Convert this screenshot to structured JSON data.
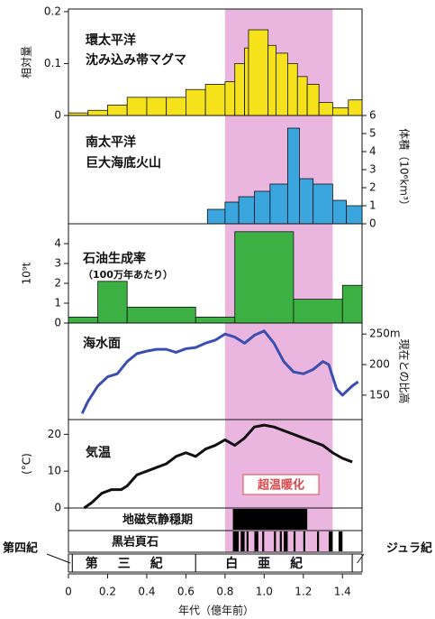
{
  "shared": {
    "xlim": [
      0,
      1.5
    ],
    "xticks": [
      0,
      0.2,
      0.4,
      0.6,
      0.8,
      {
        "value": 1,
        "label": "1.0"
      },
      1.2,
      1.4
    ],
    "xlabel": "年代（億年前）",
    "highlight": [
      0.8,
      1.35
    ],
    "highlight_color": "#e6a9d9",
    "periods": [
      {
        "name": "第四紀",
        "range": [
          0,
          0.02
        ]
      },
      {
        "name": "第三紀",
        "range": [
          0.02,
          0.65
        ]
      },
      {
        "name": "白亜紀",
        "range": [
          0.65,
          1.45
        ]
      },
      {
        "name": "ジュラ紀",
        "range": [
          1.45,
          1.5
        ]
      }
    ]
  },
  "chart_data": [
    {
      "type": "histogram",
      "title": [
        "環太平洋",
        "沈み込み帯マグマ"
      ],
      "ylabel": "相対量",
      "axis": "left",
      "color": "#f5e21b",
      "bins": [
        0,
        0.1,
        0.2,
        0.3,
        0.4,
        0.5,
        0.6,
        0.7,
        0.8,
        0.85,
        0.9,
        0.92,
        1.02,
        1.06,
        1.12,
        1.17,
        1.22,
        1.28,
        1.35,
        1.43,
        1.5
      ],
      "values": [
        0.005,
        0.01,
        0.02,
        0.035,
        0.035,
        0.035,
        0.05,
        0.06,
        0.065,
        0.1,
        0.13,
        0.165,
        0.135,
        0.12,
        0.1,
        0.075,
        0.06,
        0.025,
        0.015,
        0.03
      ],
      "ylim": [
        0,
        0.205
      ],
      "yticks": [
        0,
        0.1,
        0.2
      ]
    },
    {
      "type": "histogram",
      "title": [
        "南太平洋",
        "巨大海底火山"
      ],
      "ylabel": "体積（10⁶km³）",
      "axis": "right",
      "color": "#3aa6dd",
      "bins": [
        0.71,
        0.8,
        0.87,
        0.95,
        1.03,
        1.12,
        1.18,
        1.25,
        1.35,
        1.42,
        1.5
      ],
      "values": [
        0.8,
        1.2,
        1.5,
        1.8,
        2.2,
        5.3,
        2.5,
        2.2,
        1.3,
        1.0
      ],
      "ylim": [
        0,
        6
      ],
      "yticks": [
        0,
        1,
        2,
        3,
        4,
        5,
        6
      ]
    },
    {
      "type": "histogram",
      "title": [
        "石油生成率",
        "（100万年あたり）"
      ],
      "ylabel": "10⁹t",
      "axis": "left",
      "color": "#3db043",
      "bins": [
        0,
        0.15,
        0.3,
        0.65,
        0.85,
        1.15,
        1.4,
        1.5
      ],
      "values": [
        0.3,
        2.1,
        0.8,
        0.3,
        4.6,
        1.2,
        1.9
      ],
      "ylim": [
        0,
        5
      ],
      "yticks": [
        0,
        1,
        2,
        3,
        4
      ]
    },
    {
      "type": "line",
      "title": [
        "海水面"
      ],
      "ylabel": "現在との比高",
      "axis": "right",
      "color": "#3a4fb0",
      "x": [
        0.07,
        0.1,
        0.15,
        0.2,
        0.25,
        0.3,
        0.35,
        0.4,
        0.45,
        0.5,
        0.55,
        0.6,
        0.65,
        0.7,
        0.75,
        0.8,
        0.85,
        0.9,
        0.95,
        1.0,
        1.05,
        1.1,
        1.15,
        1.2,
        1.25,
        1.3,
        1.33,
        1.37,
        1.4,
        1.45,
        1.48
      ],
      "values": [
        120,
        140,
        165,
        180,
        185,
        205,
        218,
        222,
        225,
        225,
        220,
        226,
        228,
        235,
        240,
        250,
        245,
        235,
        248,
        255,
        235,
        205,
        188,
        185,
        192,
        205,
        200,
        160,
        150,
        165,
        172
      ],
      "ylim": [
        110,
        268
      ],
      "yticks": [
        150,
        200,
        {
          "value": 250,
          "label": "250m"
        }
      ]
    },
    {
      "type": "line",
      "title": [
        "気温"
      ],
      "ylabel": "(°C)",
      "axis": "left",
      "color": "#111111",
      "annotation": "超温暖化",
      "x": [
        0.08,
        0.12,
        0.17,
        0.22,
        0.27,
        0.3,
        0.35,
        0.4,
        0.45,
        0.5,
        0.55,
        0.6,
        0.65,
        0.7,
        0.75,
        0.8,
        0.85,
        0.9,
        0.95,
        1.0,
        1.05,
        1.1,
        1.15,
        1.2,
        1.25,
        1.3,
        1.35,
        1.4,
        1.45
      ],
      "values": [
        0,
        1.5,
        4,
        5,
        5,
        6,
        9,
        10,
        11,
        12,
        14,
        15,
        14,
        16,
        17,
        18.5,
        17,
        19,
        22,
        22.5,
        22,
        21,
        20,
        19,
        18,
        17,
        15,
        13.5,
        12.5
      ],
      "ylim": [
        0,
        24
      ],
      "yticks": [
        0,
        10,
        20
      ]
    },
    {
      "type": "timeline",
      "title": [
        "地磁気静穏期"
      ],
      "color": "#000000",
      "ranges": [
        [
          0.84,
          1.22
        ]
      ]
    },
    {
      "type": "timeline",
      "title": [
        "黒岩頁石"
      ],
      "color": "#000000",
      "ranges": [
        [
          0.84,
          0.87
        ],
        [
          0.88,
          0.9
        ],
        [
          0.91,
          0.92
        ],
        [
          0.95,
          0.97
        ],
        [
          0.99,
          1.0
        ],
        [
          1.05,
          1.06
        ],
        [
          1.08,
          1.09
        ],
        [
          1.1,
          1.12
        ],
        [
          1.15,
          1.16
        ],
        [
          1.2,
          1.21
        ],
        [
          1.27,
          1.28
        ],
        [
          1.33,
          1.35
        ],
        [
          1.38,
          1.4
        ]
      ]
    }
  ]
}
